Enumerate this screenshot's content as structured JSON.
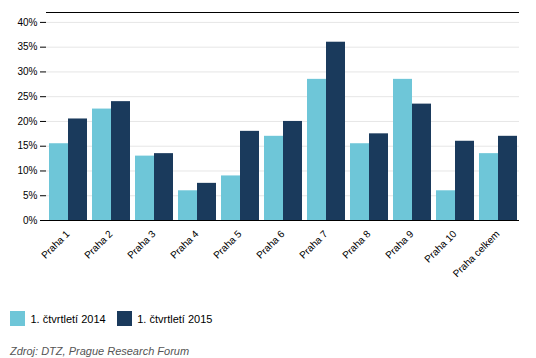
{
  "chart_data": {
    "type": "bar",
    "categories": [
      "Praha 1",
      "Praha 2",
      "Praha 3",
      "Praha 4",
      "Praha 5",
      "Praha 6",
      "Praha 7",
      "Praha 8",
      "Praha 9",
      "Praha 10",
      "Praha celkem"
    ],
    "series": [
      {
        "name": "1. čtvrtletí 2014",
        "color": "#6ec6d8",
        "values": [
          15.5,
          22.5,
          13.0,
          6.0,
          9.0,
          17.0,
          28.5,
          15.5,
          28.5,
          6.0,
          13.5
        ]
      },
      {
        "name": "1. čtvrtletí 2015",
        "color": "#1a3a5c",
        "values": [
          20.5,
          24.0,
          13.5,
          7.5,
          18.0,
          20.0,
          36.0,
          17.5,
          23.5,
          16.0,
          17.0
        ]
      }
    ],
    "ylim": [
      0,
      42
    ],
    "yticks": [
      {
        "value": 0,
        "label": "0%"
      },
      {
        "value": 5,
        "label": "5%"
      },
      {
        "value": 10,
        "label": "10%"
      },
      {
        "value": 15,
        "label": "15%"
      },
      {
        "value": 20,
        "label": "20%"
      },
      {
        "value": 25,
        "label": "25%"
      },
      {
        "value": 30,
        "label": "30%"
      },
      {
        "value": 35,
        "label": "35%"
      },
      {
        "value": 40,
        "label": "40%"
      }
    ],
    "grid": true,
    "legend": "lower left",
    "source": "Zdroj: DTZ, Prague Research Forum"
  }
}
